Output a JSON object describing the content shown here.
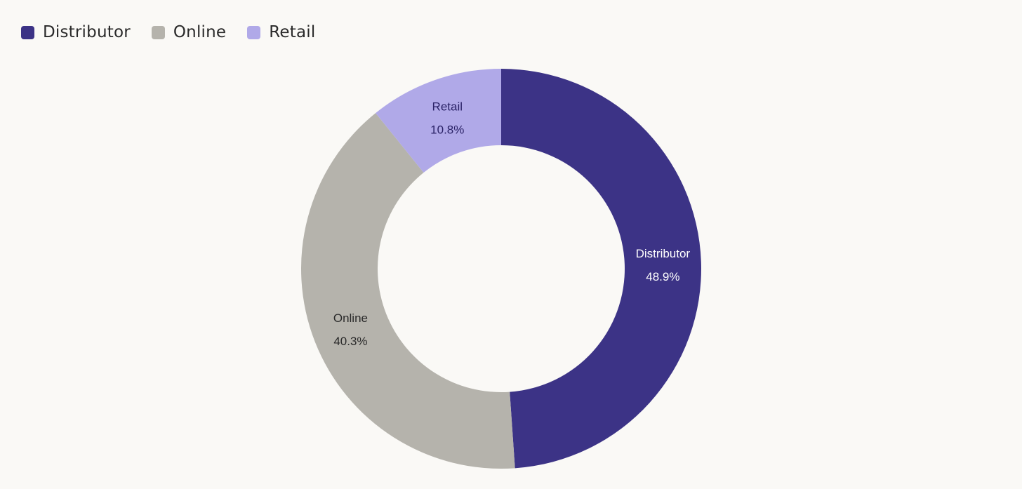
{
  "chart_data": {
    "type": "pie",
    "variant": "donut",
    "legend_position": "top-left",
    "slices": [
      {
        "label": "Distributor",
        "value": 48.9,
        "value_label": "48.9%",
        "color": "#3c3386",
        "text_color": "#ffffff"
      },
      {
        "label": "Online",
        "value": 40.3,
        "value_label": "40.3%",
        "color": "#b5b3ac",
        "text_color": "#2a2a2a"
      },
      {
        "label": "Retail",
        "value": 10.8,
        "value_label": "10.8%",
        "color": "#b0a9e8",
        "text_color": "#2a2266"
      }
    ]
  },
  "legend": {
    "items": [
      {
        "label": "Distributor",
        "color": "#3c3386"
      },
      {
        "label": "Online",
        "color": "#b5b3ac"
      },
      {
        "label": "Retail",
        "color": "#b0a9e8"
      }
    ]
  },
  "background_color": "#faf9f6"
}
